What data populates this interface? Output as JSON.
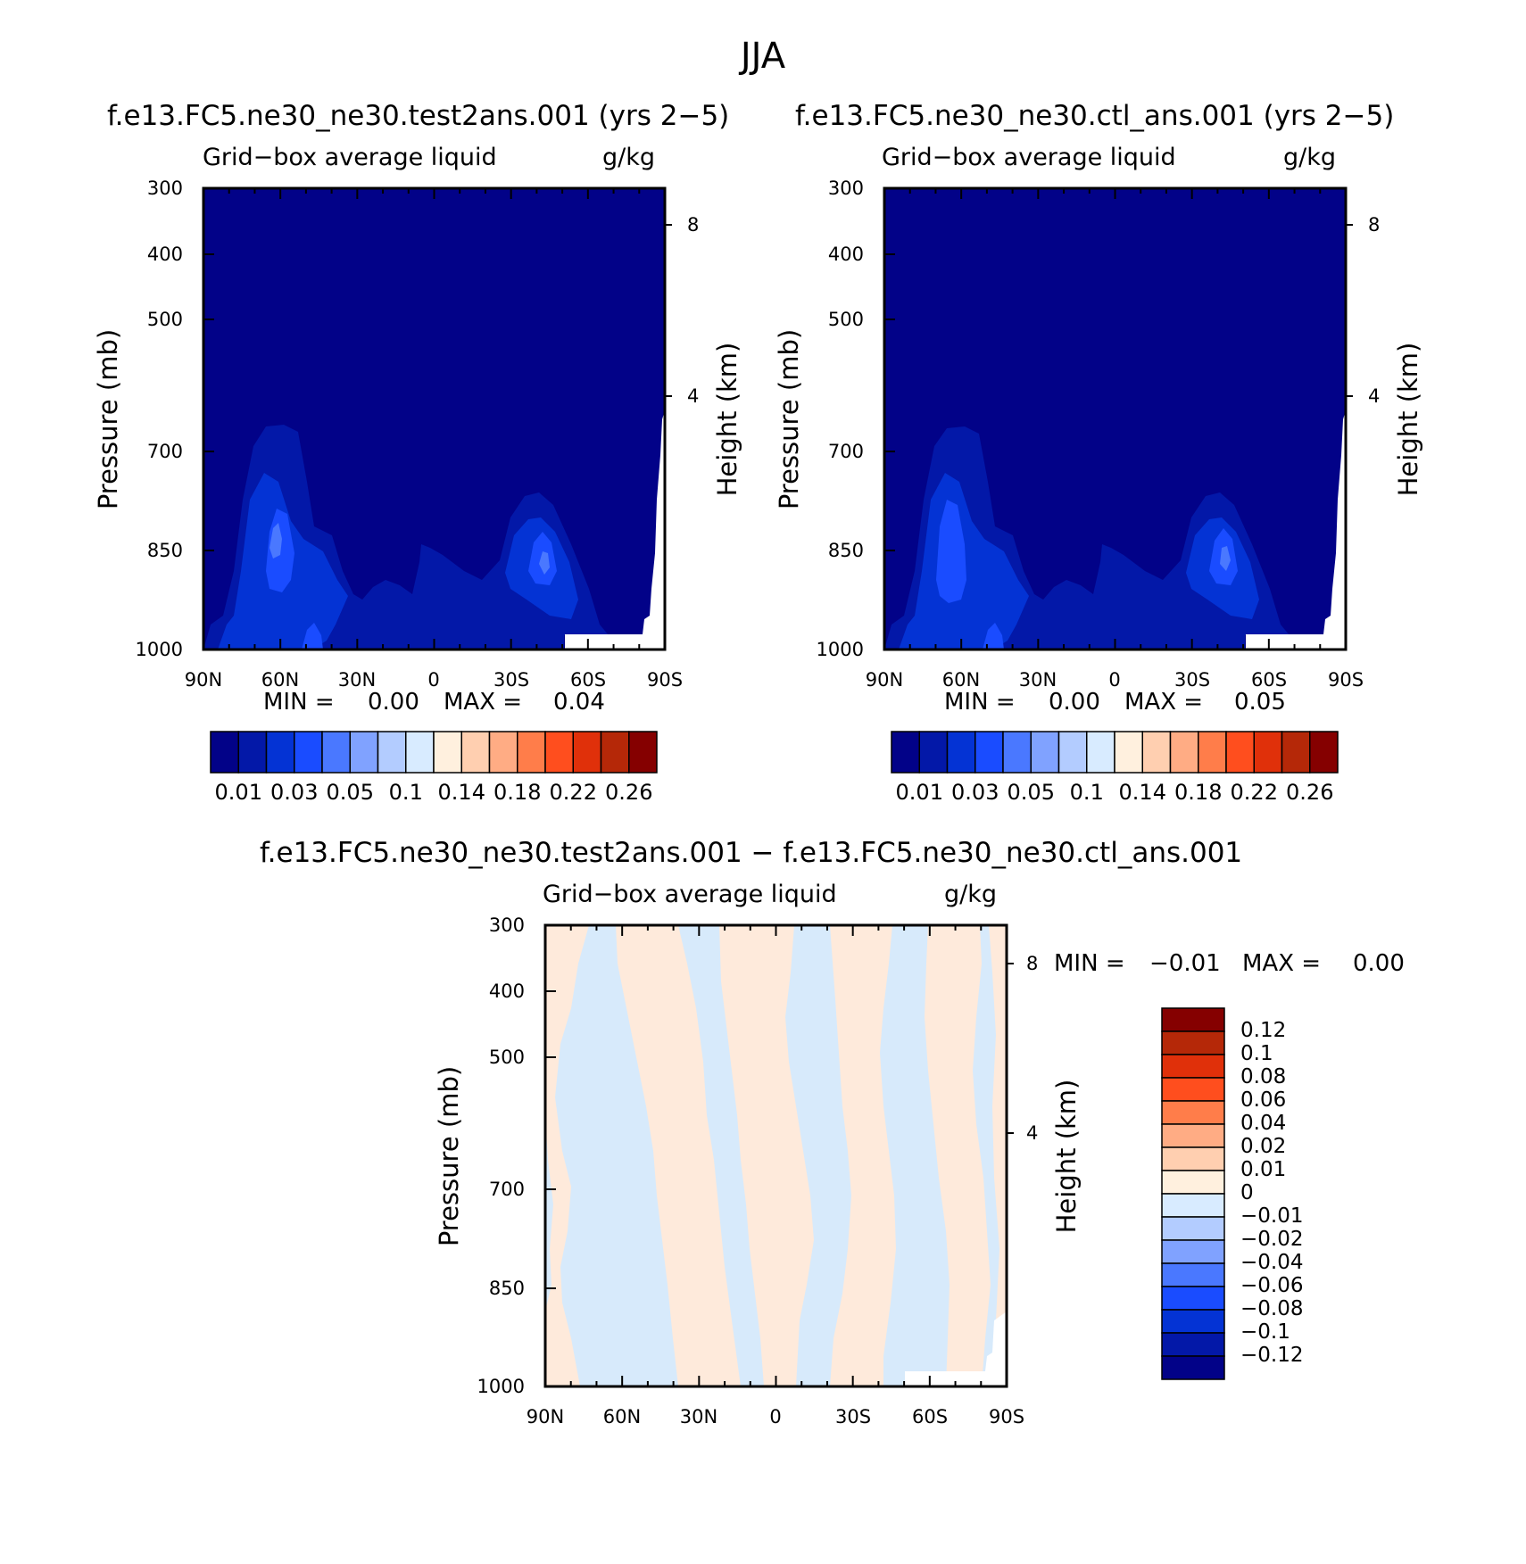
{
  "title": "JJA",
  "panels": [
    {
      "id": "test",
      "case_title": "f.e13.FC5.ne30_ne30.test2ans.001 (yrs 2−5)",
      "variable": "Grid−box average liquid",
      "units": "g/kg",
      "ylabel": "Pressure (mb)",
      "ylabel_right": "Height (km)",
      "pressure_ticks": [
        "300",
        "400",
        "500",
        "700",
        "850",
        "1000"
      ],
      "height_ticks": [
        "8",
        "4"
      ],
      "lat_ticks": [
        "90N",
        "60N",
        "30N",
        "0",
        "30S",
        "60S",
        "90S"
      ],
      "min_label": "MIN =",
      "min_value": "0.00",
      "max_label": "MAX =",
      "max_value": "0.04",
      "colorbar_labels": [
        "0.01",
        "0.03",
        "0.05",
        "0.1",
        "0.14",
        "0.18",
        "0.22",
        "0.26"
      ]
    },
    {
      "id": "ctl",
      "case_title": "f.e13.FC5.ne30_ne30.ctl_ans.001 (yrs 2−5)",
      "variable": "Grid−box average liquid",
      "units": "g/kg",
      "ylabel": "Pressure (mb)",
      "ylabel_right": "Height (km)",
      "pressure_ticks": [
        "300",
        "400",
        "500",
        "700",
        "850",
        "1000"
      ],
      "height_ticks": [
        "8",
        "4"
      ],
      "lat_ticks": [
        "90N",
        "60N",
        "30N",
        "0",
        "30S",
        "60S",
        "90S"
      ],
      "min_label": "MIN =",
      "min_value": "0.00",
      "max_label": "MAX =",
      "max_value": "0.05",
      "colorbar_labels": [
        "0.01",
        "0.03",
        "0.05",
        "0.1",
        "0.14",
        "0.18",
        "0.22",
        "0.26"
      ]
    },
    {
      "id": "diff",
      "case_title": "f.e13.FC5.ne30_ne30.test2ans.001 − f.e13.FC5.ne30_ne30.ctl_ans.001",
      "variable": "Grid−box average liquid",
      "units": "g/kg",
      "ylabel": "Pressure (mb)",
      "ylabel_right": "Height (km)",
      "pressure_ticks": [
        "300",
        "400",
        "500",
        "700",
        "850",
        "1000"
      ],
      "height_ticks": [
        "8",
        "4"
      ],
      "lat_ticks": [
        "90N",
        "60N",
        "30N",
        "0",
        "30S",
        "60S",
        "90S"
      ],
      "min_label": "MIN =",
      "min_value": "−0.01",
      "max_label": "MAX =",
      "max_value": "0.00",
      "colorbar_labels": [
        "0.12",
        "0.1",
        "0.08",
        "0.06",
        "0.04",
        "0.02",
        "0.01",
        "0",
        "−0.01",
        "−0.02",
        "−0.04",
        "−0.06",
        "−0.08",
        "−0.1",
        "−0.12"
      ]
    }
  ],
  "colors": {
    "abs_scale": [
      "#020288",
      "#0318a8",
      "#0433d4",
      "#1a4cff",
      "#4a78ff",
      "#80a2ff",
      "#b3ccff",
      "#d8ebff",
      "#fff0de",
      "#ffcfb0",
      "#ffac84",
      "#ff7d4a",
      "#ff4e1e",
      "#e0300a",
      "#b52808",
      "#850000"
    ],
    "diff_scale": [
      "#020288",
      "#0318a8",
      "#0433d4",
      "#1a4cff",
      "#4a78ff",
      "#80a2ff",
      "#b3ccff",
      "#d8ebff",
      "#fff0de",
      "#ffcfb0",
      "#ffac84",
      "#ff7d4a",
      "#ff4e1e",
      "#e0300a",
      "#b52808",
      "#850000"
    ],
    "background_field": "#020288",
    "diff_positive": "#feeadb",
    "diff_negative": "#d7eafb"
  },
  "chart_data": [
    {
      "type": "heatmap",
      "title": "f.e13.FC5.ne30_ne30.test2ans.001 (yrs 2−5)",
      "subtitle": "Grid−box average liquid g/kg",
      "xlabel": "",
      "ylabel": "Pressure (mb)",
      "x_ticks": [
        "90N",
        "60N",
        "30N",
        "0",
        "30S",
        "60S",
        "90S"
      ],
      "y_ticks": [
        300,
        400,
        500,
        700,
        850,
        1000
      ],
      "xlim": [
        90,
        -90
      ],
      "ylim": [
        1000,
        300
      ],
      "min": 0.0,
      "max": 0.04,
      "levels": [
        0.01,
        0.02,
        0.03,
        0.04,
        0.05,
        0.06,
        0.1,
        0.12,
        0.14,
        0.16,
        0.18,
        0.2,
        0.22,
        0.24,
        0.26
      ]
    },
    {
      "type": "heatmap",
      "title": "f.e13.FC5.ne30_ne30.ctl_ans.001 (yrs 2−5)",
      "subtitle": "Grid−box average liquid g/kg",
      "xlabel": "",
      "ylabel": "Pressure (mb)",
      "x_ticks": [
        "90N",
        "60N",
        "30N",
        "0",
        "30S",
        "60S",
        "90S"
      ],
      "y_ticks": [
        300,
        400,
        500,
        700,
        850,
        1000
      ],
      "xlim": [
        90,
        -90
      ],
      "ylim": [
        1000,
        300
      ],
      "min": 0.0,
      "max": 0.05,
      "levels": [
        0.01,
        0.02,
        0.03,
        0.04,
        0.05,
        0.06,
        0.1,
        0.12,
        0.14,
        0.16,
        0.18,
        0.2,
        0.22,
        0.24,
        0.26
      ]
    },
    {
      "type": "heatmap",
      "title": "f.e13.FC5.ne30_ne30.test2ans.001 − f.e13.FC5.ne30_ne30.ctl_ans.001",
      "subtitle": "Grid−box average liquid g/kg",
      "xlabel": "",
      "ylabel": "Pressure (mb)",
      "x_ticks": [
        "90N",
        "60N",
        "30N",
        "0",
        "30S",
        "60S",
        "90S"
      ],
      "y_ticks": [
        300,
        400,
        500,
        700,
        850,
        1000
      ],
      "xlim": [
        90,
        -90
      ],
      "ylim": [
        1000,
        300
      ],
      "min": -0.01,
      "max": 0.0,
      "levels": [
        -0.12,
        -0.1,
        -0.08,
        -0.06,
        -0.04,
        -0.02,
        -0.01,
        0,
        0.01,
        0.02,
        0.04,
        0.06,
        0.08,
        0.1,
        0.12
      ]
    }
  ]
}
